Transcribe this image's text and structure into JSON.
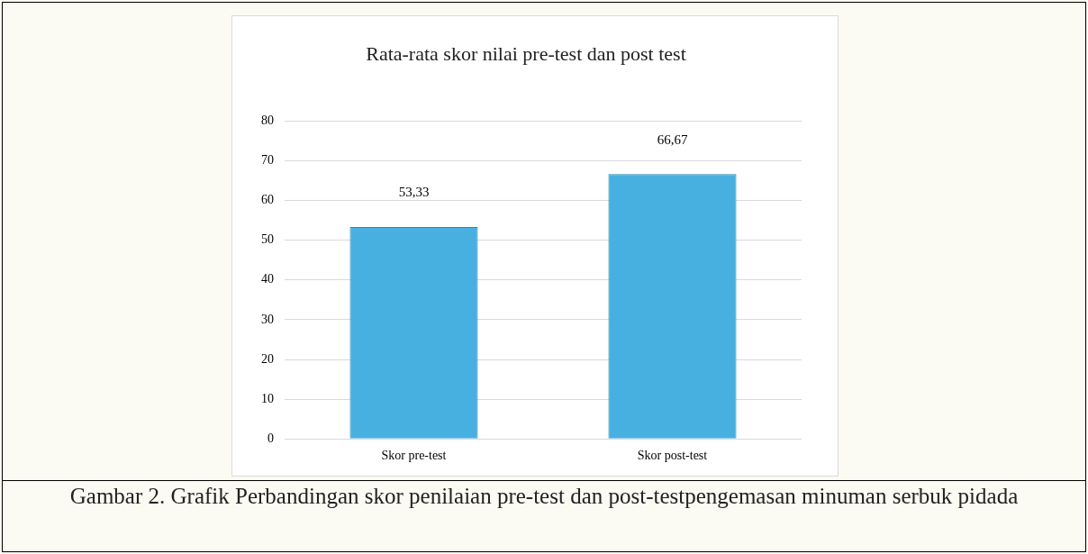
{
  "chart_data": {
    "type": "bar",
    "title": "Rata-rata skor nilai pre-test dan post test",
    "categories": [
      "Skor pre-test",
      "Skor post-test"
    ],
    "values": [
      53.33,
      66.67
    ],
    "color": "#47b0e0",
    "ylim": [
      0,
      80
    ],
    "yticks": [
      0,
      10,
      20,
      30,
      40,
      50,
      60,
      70,
      80
    ],
    "grid": "y",
    "value_labels": [
      "53,33",
      "66,67"
    ],
    "annotations": [
      "Gambar 2. Grafik Perbandingan skor penilaian pre-test dan post-testpengemasan minuman serbuk pidada"
    ]
  }
}
